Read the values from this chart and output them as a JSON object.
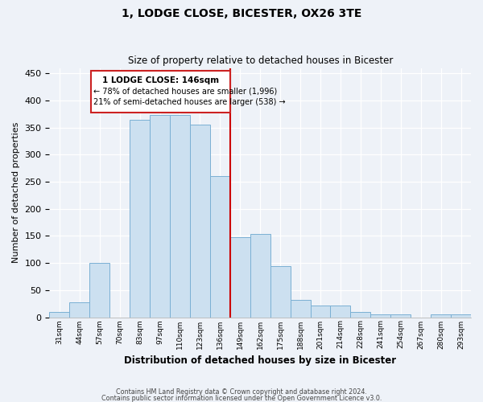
{
  "title": "1, LODGE CLOSE, BICESTER, OX26 3TE",
  "subtitle": "Size of property relative to detached houses in Bicester",
  "xlabel": "Distribution of detached houses by size in Bicester",
  "ylabel": "Number of detached properties",
  "bin_labels": [
    "31sqm",
    "44sqm",
    "57sqm",
    "70sqm",
    "83sqm",
    "97sqm",
    "110sqm",
    "123sqm",
    "136sqm",
    "149sqm",
    "162sqm",
    "175sqm",
    "188sqm",
    "201sqm",
    "214sqm",
    "228sqm",
    "241sqm",
    "254sqm",
    "267sqm",
    "280sqm",
    "293sqm"
  ],
  "bar_heights": [
    10,
    28,
    100,
    0,
    365,
    373,
    373,
    355,
    260,
    148,
    154,
    95,
    32,
    22,
    22,
    10,
    5,
    5,
    0,
    5,
    5
  ],
  "bar_color": "#cce0f0",
  "bar_edge_color": "#7ab0d4",
  "vline_x_index": 9,
  "vline_color": "#cc0000",
  "ylim": [
    0,
    460
  ],
  "yticks": [
    0,
    50,
    100,
    150,
    200,
    250,
    300,
    350,
    400,
    450
  ],
  "ann_line1": "1 LODGE CLOSE: 146sqm",
  "ann_line2": "← 78% of detached houses are smaller (1,996)",
  "ann_line3": "21% of semi-detached houses are larger (538) →",
  "footer1": "Contains HM Land Registry data © Crown copyright and database right 2024.",
  "footer2": "Contains public sector information licensed under the Open Government Licence v3.0.",
  "background_color": "#eef2f8"
}
